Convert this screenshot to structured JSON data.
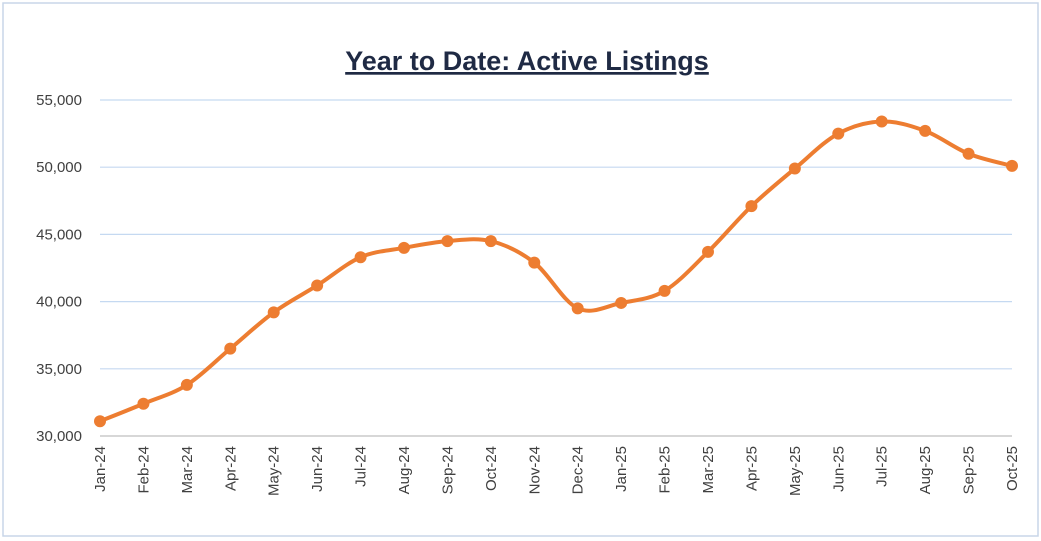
{
  "chart_data": {
    "type": "line",
    "title": "Year to Date: Active Listings",
    "categories": [
      "Jan-24",
      "Feb-24",
      "Mar-24",
      "Apr-24",
      "May-24",
      "Jun-24",
      "Jul-24",
      "Aug-24",
      "Sep-24",
      "Oct-24",
      "Nov-24",
      "Dec-24",
      "Jan-25",
      "Feb-25",
      "Mar-25",
      "Apr-25",
      "May-25",
      "Jun-25",
      "Jul-25",
      "Aug-25",
      "Sep-25",
      "Oct-25"
    ],
    "series": [
      {
        "name": "Active Listings",
        "color": "#ed7d31",
        "values": [
          31100,
          32400,
          33800,
          36500,
          39200,
          41200,
          43300,
          44000,
          44500,
          44500,
          42900,
          39500,
          39900,
          40800,
          43700,
          47100,
          49900,
          52500,
          53400,
          52700,
          51000,
          50100
        ]
      }
    ],
    "ylim": [
      30000,
      55000
    ],
    "yticks": [
      {
        "value": 30000,
        "label": "30,000"
      },
      {
        "value": 35000,
        "label": "35,000"
      },
      {
        "value": 40000,
        "label": "40,000"
      },
      {
        "value": 45000,
        "label": "45,000"
      },
      {
        "value": 50000,
        "label": "50,000"
      },
      {
        "value": 55000,
        "label": "55,000"
      }
    ],
    "grid": true
  }
}
